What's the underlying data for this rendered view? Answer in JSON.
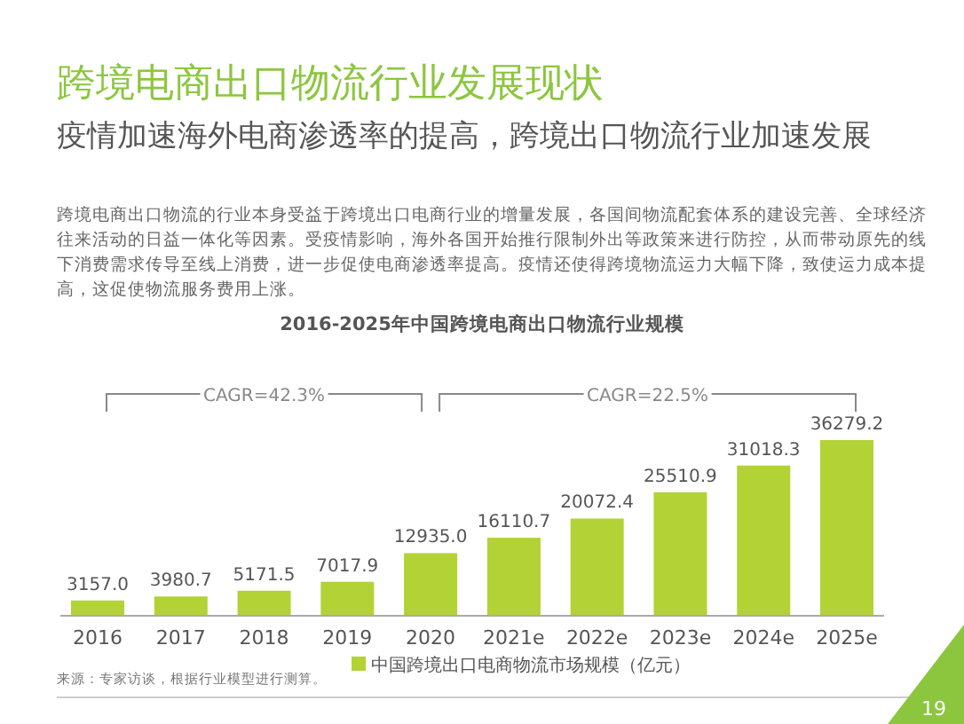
{
  "chart_data": {
    "type": "bar",
    "title": "跨境电商出口物流行业发展现状",
    "subtitle": "疫情加速海外电商渗透率的提高，跨境出口物流行业加速发展",
    "categories": [
      "2016",
      "2017",
      "2018",
      "2019",
      "2020",
      "2021e",
      "2022e",
      "2023e",
      "2024e",
      "2025e"
    ],
    "series": [
      {
        "name": "中国跨境出口电商物流市场规模（亿元）",
        "color": "#b2d235",
        "values": [
          3157.0,
          3980.7,
          5171.5,
          7017.9,
          12935.0,
          16110.7,
          20072.4,
          25510.9,
          31018.3,
          36279.2
        ],
        "value_labels": [
          "3157.0",
          "3980.7",
          "5171.5",
          "7017.9",
          "12935.0",
          "16110.7",
          "20072.4",
          "25510.9",
          "31018.3",
          "36279.2"
        ]
      }
    ],
    "legend": "bottom",
    "annotations": [
      "跨境电商出口物流的行业本身受益于跨境出口电商行业的增量发展，各国间物流配套体系的建设完善、全球经济往来活动的日益一体化等因素。受疫情影响，海外各国开始推行限制外出等政策来进行防控，从而带动原先的线下消费需求传导至线上消费，进一步促使电商渗透率提高。疫情还使得跨境物流运力大幅下降，致使运力成本提高，这促使物流服务费用上涨。",
      "2016-2025年中国跨境电商出口物流行业规模",
      "CAGR=42.3%",
      "CAGR=22.5%",
      "来源：专家访谈，根据行业模型进行测算。",
      "19"
    ]
  }
}
